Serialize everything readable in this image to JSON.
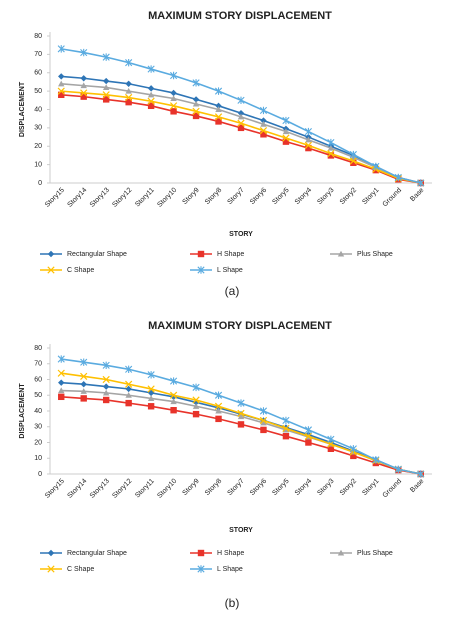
{
  "chart_data": [
    {
      "type": "line",
      "title": "MAXIMUM STORY DISPLACEMENT",
      "x_label": "STORY",
      "y_label": "DISPLACEMENT",
      "caption": "(a)",
      "categories": [
        "Story15",
        "Story14",
        "Story13",
        "Story12",
        "Story11",
        "Story10",
        "Story9",
        "Story8",
        "Story7",
        "Story6",
        "Story5",
        "Story4",
        "Story3",
        "Story2",
        "Story1",
        "Ground",
        "Base"
      ],
      "ylim": [
        0,
        80
      ],
      "yticks": [
        0,
        10,
        20,
        30,
        40,
        50,
        60,
        70,
        80
      ],
      "grid": false,
      "series": [
        {
          "name": "Rectangular Shape",
          "color": "#2e75b6",
          "marker": "diamond",
          "values": [
            58,
            57,
            55.5,
            54,
            51.5,
            49,
            45.5,
            42,
            38,
            34,
            29.5,
            25,
            20,
            15,
            9,
            3,
            0
          ]
        },
        {
          "name": "H Shape",
          "color": "#e8332a",
          "marker": "square",
          "values": [
            48,
            47,
            45.5,
            44,
            42,
            39,
            36.5,
            33.5,
            30,
            26.5,
            22.5,
            19,
            15,
            11,
            7,
            2,
            0
          ]
        },
        {
          "name": "Plus Shape",
          "color": "#a5a5a5",
          "marker": "triangle",
          "values": [
            54,
            53,
            52,
            50,
            48,
            46,
            43,
            40,
            36,
            32,
            28,
            23.5,
            19,
            14,
            8.5,
            3,
            0
          ]
        },
        {
          "name": "C Shape",
          "color": "#ffc000",
          "marker": "x",
          "values": [
            50,
            49,
            48,
            46.5,
            44.5,
            42,
            39,
            36,
            32.5,
            28.5,
            24.5,
            20.5,
            16,
            12,
            7.5,
            2.5,
            0
          ]
        },
        {
          "name": "L Shape",
          "color": "#5aabe0",
          "marker": "star",
          "values": [
            73,
            71,
            68.5,
            65.5,
            62,
            58.5,
            54.5,
            50,
            45,
            39.5,
            34,
            28,
            22,
            15.5,
            9,
            3,
            0
          ]
        }
      ]
    },
    {
      "type": "line",
      "title": "MAXIMUM STORY DISPLACEMENT",
      "x_label": "STORY",
      "y_label": "DISPLACEMENT",
      "caption": "(b)",
      "categories": [
        "Story15",
        "Story14",
        "Story13",
        "Story12",
        "Story11",
        "Story10",
        "Story9",
        "Story8",
        "Story7",
        "Story6",
        "Story5",
        "Story4",
        "Story3",
        "Story2",
        "Story1",
        "Ground",
        "Base"
      ],
      "ylim": [
        0,
        80
      ],
      "yticks": [
        0,
        10,
        20,
        30,
        40,
        50,
        60,
        70,
        80
      ],
      "grid": false,
      "series": [
        {
          "name": "Rectangular Shape",
          "color": "#2e75b6",
          "marker": "diamond",
          "values": [
            58,
            57,
            55.5,
            54,
            51.5,
            49,
            45.5,
            42,
            38,
            34,
            29.5,
            25,
            20,
            14.5,
            9,
            3,
            0
          ]
        },
        {
          "name": "H Shape",
          "color": "#e8332a",
          "marker": "square",
          "values": [
            49,
            48,
            47,
            45,
            43,
            40.5,
            38,
            35,
            31.5,
            28,
            24,
            20,
            16,
            11.5,
            7,
            2.5,
            0
          ]
        },
        {
          "name": "Plus Shape",
          "color": "#a5a5a5",
          "marker": "triangle",
          "values": [
            53,
            52.5,
            51.5,
            50,
            48,
            46,
            43,
            40,
            36.5,
            32.5,
            28,
            23.5,
            19,
            14,
            8.5,
            3,
            0
          ]
        },
        {
          "name": "C Shape",
          "color": "#ffc000",
          "marker": "x",
          "values": [
            64,
            62,
            60,
            57,
            54,
            50,
            47,
            43,
            38.5,
            34,
            29,
            24,
            19,
            14,
            8.5,
            3,
            0
          ]
        },
        {
          "name": "L Shape",
          "color": "#5aabe0",
          "marker": "star",
          "values": [
            73,
            71,
            69,
            66.5,
            63,
            59,
            55,
            50,
            45,
            40,
            34,
            28,
            22,
            16,
            9,
            3,
            0
          ]
        }
      ]
    }
  ]
}
